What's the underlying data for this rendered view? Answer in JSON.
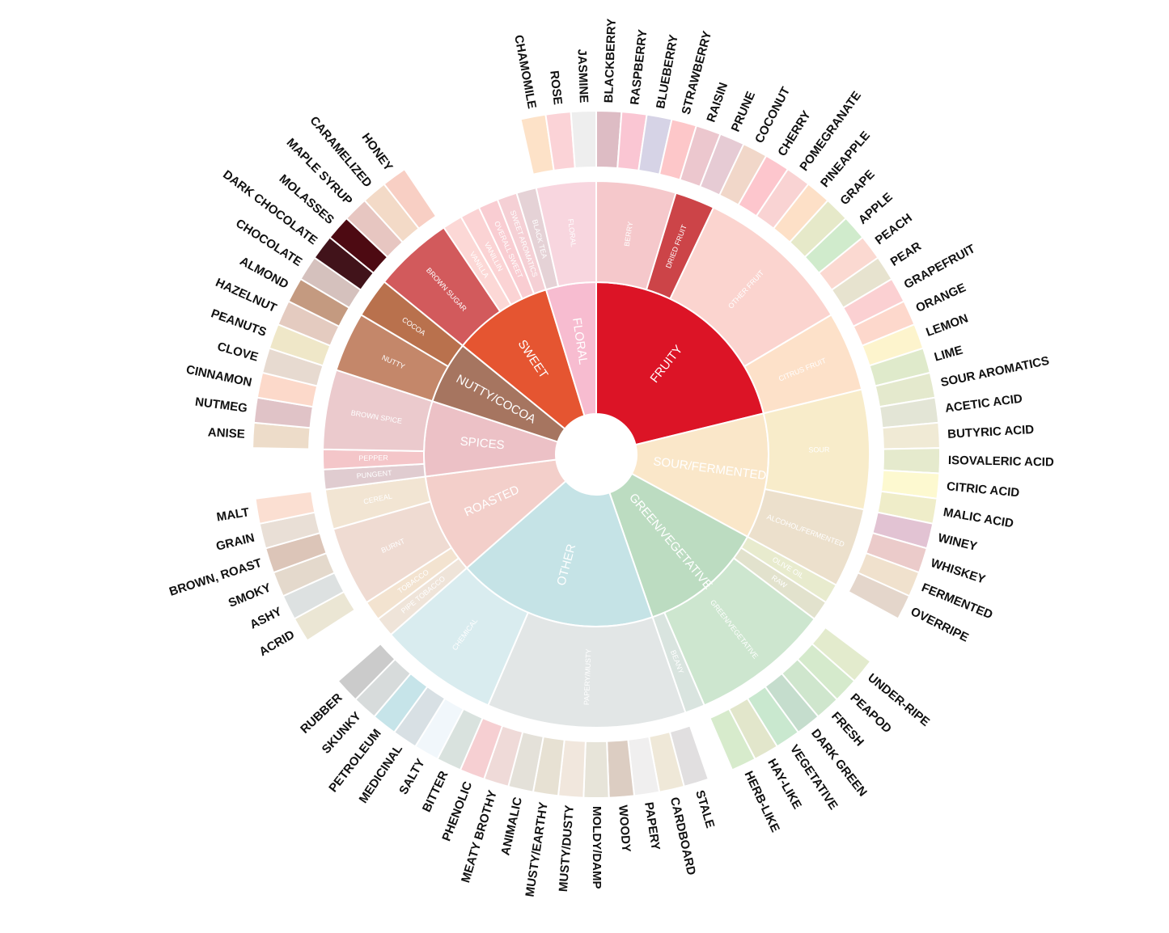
{
  "wheel": {
    "categories": [
      {
        "name": "FRUITY",
        "color": "#dc1426",
        "children": [
          {
            "name": "BERRY",
            "color": "#f5c8cb",
            "leaves": [
              {
                "name": "BLACKBERRY",
                "color": "#ddbcc4"
              },
              {
                "name": "RASPBERRY",
                "color": "#fac6d3"
              },
              {
                "name": "BLUEBERRY",
                "color": "#d6d3e6"
              },
              {
                "name": "STRAWBERRY",
                "color": "#fdc7c9"
              }
            ]
          },
          {
            "name": "DRIED FRUIT",
            "color": "#cc4448",
            "leaves": [
              {
                "name": "RAISIN",
                "color": "#ecc7ce"
              },
              {
                "name": "PRUNE",
                "color": "#e6cbd4"
              }
            ]
          },
          {
            "name": "OTHER FRUIT",
            "color": "#fbd4cf",
            "leaves": [
              {
                "name": "COCONUT",
                "color": "#f1d7c9"
              },
              {
                "name": "CHERRY",
                "color": "#fdc6cd"
              },
              {
                "name": "POMEGRANATE",
                "color": "#f9d3d3"
              },
              {
                "name": "PINEAPPLE",
                "color": "#fde0c7"
              },
              {
                "name": "GRAPE",
                "color": "#e6e9c9"
              },
              {
                "name": "APPLE",
                "color": "#d0ebcc"
              },
              {
                "name": "PEACH",
                "color": "#fbd9d1"
              },
              {
                "name": "PEAR",
                "color": "#e7e3cf"
              }
            ]
          },
          {
            "name": "CITRUS FRUIT",
            "color": "#fde1c9",
            "leaves": [
              {
                "name": "GRAPEFRUIT",
                "color": "#fbd0d2"
              },
              {
                "name": "ORANGE",
                "color": "#fdd8cc"
              },
              {
                "name": "LEMON",
                "color": "#fdf4cd"
              },
              {
                "name": "LIME",
                "color": "#dfeacb"
              }
            ]
          }
        ]
      },
      {
        "name": "SOUR/FERMENTED",
        "color": "#fae7c9",
        "children": [
          {
            "name": "SOUR",
            "color": "#f8ecca",
            "leaves": [
              {
                "name": "SOUR AROMATICS",
                "color": "#e4e9cd"
              },
              {
                "name": "ACETIC ACID",
                "color": "#e3e5d6"
              },
              {
                "name": "BUTYRIC ACID",
                "color": "#f0ead5"
              },
              {
                "name": "ISOVALERIC ACID",
                "color": "#e5eacd"
              },
              {
                "name": "CITRIC ACID",
                "color": "#fdf9d0"
              },
              {
                "name": "MALIC ACID",
                "color": "#efedc9"
              }
            ]
          },
          {
            "name": "ALCOHOL/FERMENTED",
            "color": "#ece0cc",
            "leaves": [
              {
                "name": "WINEY",
                "color": "#e2c3d3"
              },
              {
                "name": "WHISKEY",
                "color": "#ebcbca"
              },
              {
                "name": "FERMENTED",
                "color": "#f0e1cd"
              },
              {
                "name": "OVERRIPE",
                "color": "#e4d6cb"
              }
            ]
          }
        ]
      },
      {
        "name": "GREEN/VEGETATIVE",
        "color": "#bcdcc1",
        "children": [
          {
            "name": "OLIVE OIL",
            "color": "#e8ebce",
            "leaves": []
          },
          {
            "name": "RAW",
            "color": "#e2e2cd",
            "leaves": []
          },
          {
            "name": "GREEN/VEGETATIVE",
            "color": "#cde6cf",
            "leaves": [
              {
                "name": "UNDER-RIPE",
                "color": "#e3ebcd"
              },
              {
                "name": "PEAPOD",
                "color": "#d5eacc"
              },
              {
                "name": "FRESH",
                "color": "#cfe6cd"
              },
              {
                "name": "DARK GREEN",
                "color": "#c5ddcd"
              },
              {
                "name": "VEGETATIVE",
                "color": "#c9e8cf"
              },
              {
                "name": "HAY-LIKE",
                "color": "#e2e6cb"
              },
              {
                "name": "HERB-LIKE",
                "color": "#d7ebcc"
              }
            ]
          },
          {
            "name": "BEANY",
            "color": "#d9e4df",
            "leaves": []
          }
        ]
      },
      {
        "name": "OTHER",
        "color": "#c5e3e6",
        "children": [
          {
            "name": "PAPERY/MUSTY",
            "color": "#e2e6e6",
            "leaves": [
              {
                "name": "STALE",
                "color": "#e1dfe0"
              },
              {
                "name": "CARDBOARD",
                "color": "#efe8d8"
              },
              {
                "name": "PAPERY",
                "color": "#f0efef"
              },
              {
                "name": "WOODY",
                "color": "#dccdc2"
              },
              {
                "name": "MOLDY/DAMP",
                "color": "#e7e4d9"
              },
              {
                "name": "MUSTY/DUSTY",
                "color": "#f1e7dd"
              },
              {
                "name": "MUSTY/EARTHY",
                "color": "#e7e1d3"
              },
              {
                "name": "ANIMALIC",
                "color": "#e4e1d9"
              },
              {
                "name": "MEATY BROTHY",
                "color": "#efdad8"
              },
              {
                "name": "PHENOLIC",
                "color": "#f6cfd2"
              }
            ]
          },
          {
            "name": "CHEMICAL",
            "color": "#d9ecef",
            "leaves": [
              {
                "name": "BITTER",
                "color": "#d9e2de"
              },
              {
                "name": "SALTY",
                "color": "#f1f7fb"
              },
              {
                "name": "MEDICINAL",
                "color": "#d8e0e4"
              },
              {
                "name": "PETROLEUM",
                "color": "#c6e4e9"
              },
              {
                "name": "SKUNKY",
                "color": "#d7dbdb"
              },
              {
                "name": "RUBBER",
                "color": "#cbcbcb"
              }
            ]
          }
        ]
      },
      {
        "name": "ROASTED",
        "color": "#f3cfca",
        "children": [
          {
            "name": "PIPE TOBACCO",
            "color": "#efe4d9",
            "leaves": []
          },
          {
            "name": "TOBACCO",
            "color": "#f3e3d0",
            "leaves": []
          },
          {
            "name": "BURNT",
            "color": "#efdbd2",
            "leaves": [
              {
                "name": "ACRID",
                "color": "#ebe6d4"
              },
              {
                "name": "ASHY",
                "color": "#dde1e1"
              },
              {
                "name": "SMOKY",
                "color": "#e4d9cc"
              },
              {
                "name": "BROWN, ROAST",
                "color": "#dcc5b8"
              }
            ]
          },
          {
            "name": "CEREAL",
            "color": "#f2e5d3",
            "leaves": [
              {
                "name": "GRAIN",
                "color": "#e9dfd6"
              },
              {
                "name": "MALT",
                "color": "#fbdfd2"
              }
            ]
          }
        ]
      },
      {
        "name": "SPICES",
        "color": "#ecc1c6",
        "children": [
          {
            "name": "PUNGENT",
            "color": "#e0ccd0",
            "leaves": []
          },
          {
            "name": "PEPPER",
            "color": "#f4c6c9",
            "leaves": []
          },
          {
            "name": "BROWN SPICE",
            "color": "#ebcacd",
            "leaves": [
              {
                "name": "ANISE",
                "color": "#eddcc9"
              },
              {
                "name": "NUTMEG",
                "color": "#e0c3c7"
              },
              {
                "name": "CINNAMON",
                "color": "#fcd9ca"
              },
              {
                "name": "CLOVE",
                "color": "#e7dad0"
              }
            ]
          }
        ]
      },
      {
        "name": "NUTTY/COCOA",
        "color": "#a67560",
        "children": [
          {
            "name": "NUTTY",
            "color": "#c4876a",
            "leaves": [
              {
                "name": "PEANUTS",
                "color": "#efe7c8"
              },
              {
                "name": "HAZELNUT",
                "color": "#e4cbc0"
              },
              {
                "name": "ALMOND",
                "color": "#c49a80"
              }
            ]
          },
          {
            "name": "COCOA",
            "color": "#b9714d",
            "leaves": [
              {
                "name": "CHOCOLATE",
                "color": "#d5c1bd"
              },
              {
                "name": "DARK CHOCOLATE",
                "color": "#41131a"
              }
            ]
          }
        ]
      },
      {
        "name": "SWEET",
        "color": "#e55531",
        "children": [
          {
            "name": "BROWN SUGAR",
            "color": "#d25a5c",
            "leaves": [
              {
                "name": "MOLASSES",
                "color": "#4d0a12"
              },
              {
                "name": "MAPLE SYRUP",
                "color": "#e7c6c1"
              },
              {
                "name": "CARAMELIZED",
                "color": "#f3dac7"
              },
              {
                "name": "HONEY",
                "color": "#f8cfc4"
              }
            ]
          },
          {
            "name": "VANILLA",
            "color": "#fcd8d6",
            "leaves": []
          },
          {
            "name": "VANILLIN",
            "color": "#fbd3d4",
            "leaves": []
          },
          {
            "name": "OVERALL SWEET",
            "color": "#f9cdd2",
            "leaves": []
          },
          {
            "name": "SWEET AROMATICS",
            "color": "#f5d0d5",
            "leaves": []
          }
        ]
      },
      {
        "name": "FLORAL",
        "color": "#f7bcd0",
        "children": [
          {
            "name": "BLACK TEA",
            "color": "#e5d2d6",
            "leaves": []
          },
          {
            "name": "FLORAL",
            "color": "#f8d6df",
            "leaves": [
              {
                "name": "CHAMOMILE",
                "color": "#fde2c8"
              },
              {
                "name": "ROSE",
                "color": "#fbd3d7"
              },
              {
                "name": "JASMINE",
                "color": "#eeeeee"
              }
            ]
          }
        ]
      }
    ]
  }
}
